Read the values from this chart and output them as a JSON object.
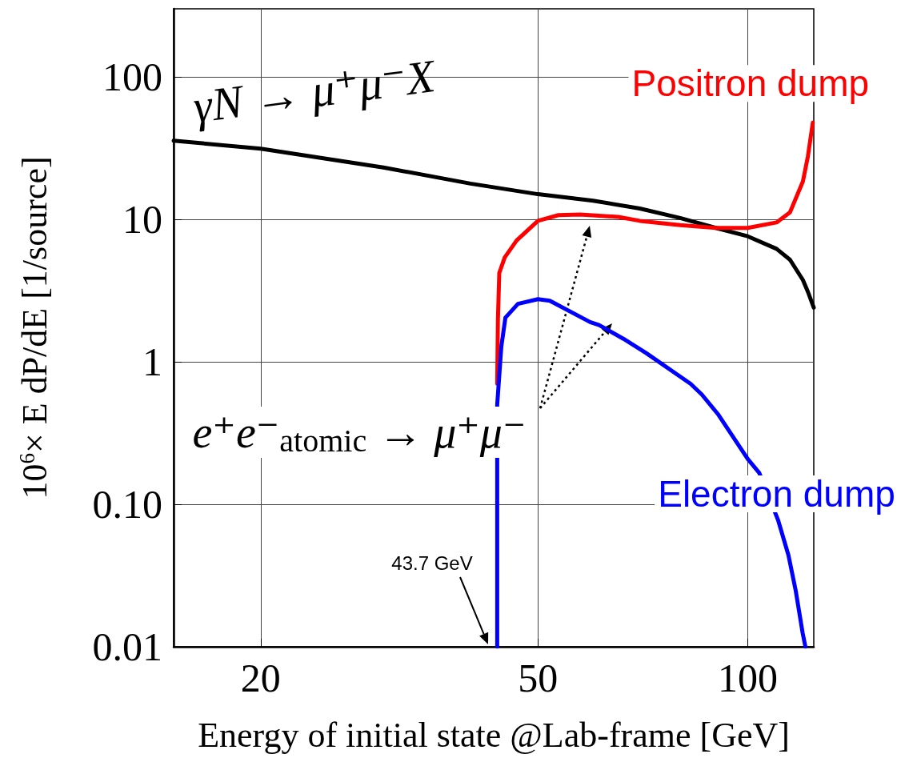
{
  "chart_data": {
    "type": "line",
    "xlabel": "Energy of initial state @Lab-frame [GeV]",
    "ylabel": "10$^{6}$× E dP/dE [1/source]",
    "log": "xy",
    "xlim": [
      15,
      124.4
    ],
    "ylim": [
      0.01,
      300
    ],
    "xticks": [
      20,
      50,
      100
    ],
    "yticks": [
      0.01,
      {
        "value": 0.1,
        "label": "0.10"
      },
      1,
      10,
      100
    ],
    "grid": true,
    "legend": false,
    "marker": "none",
    "line_style": "solid",
    "annotations": [
      "e⁺e⁻$_{atomic}$ → μ⁺μ⁻",
      "43.7 GeV"
    ],
    "series": [
      {
        "name": "γN → μ⁺μ⁻X",
        "color": "#000000",
        "x": [
          15,
          20,
          30,
          40,
          50,
          60,
          70,
          80,
          90,
          100,
          110,
          115,
          120,
          122,
          124.4
        ],
        "values": [
          35.6,
          31.3,
          23.1,
          17.8,
          15,
          13.5,
          11.9,
          10.2,
          8.7,
          7.6,
          6.2,
          5.2,
          3.75,
          3.1,
          2.4
        ]
      },
      {
        "name": "Positron dump",
        "color": "#ff0000",
        "x": [
          43.7,
          43.8,
          44,
          44.8,
          46.6,
          50,
          53.5,
          57.5,
          65.2,
          70,
          80,
          90,
          100,
          110,
          115,
          120,
          122,
          124
        ],
        "values": [
          0.7,
          1.96,
          4.2,
          5.4,
          7.1,
          9.75,
          10.7,
          10.8,
          10.4,
          9.75,
          9.1,
          8.7,
          8.7,
          9.5,
          11.2,
          18.4,
          27.6,
          47.6
        ]
      },
      {
        "name": "Electron dump",
        "color": "#0000ff",
        "x": [
          43.7,
          43.7,
          44.3,
          44.9,
          46.8,
          50,
          52,
          59.4,
          61.2,
          66.3,
          71.5,
          82.8,
          85.9,
          90.6,
          100,
          103.9,
          110.6,
          114.4,
          117.2,
          119.9,
          121
        ],
        "values": [
          0.01,
          0.5,
          1.28,
          2.04,
          2.55,
          2.75,
          2.68,
          1.9,
          1.81,
          1.45,
          1.15,
          0.7,
          0.59,
          0.43,
          0.208,
          0.166,
          0.077,
          0.044,
          0.0247,
          0.0125,
          0.01
        ]
      }
    ]
  }
}
